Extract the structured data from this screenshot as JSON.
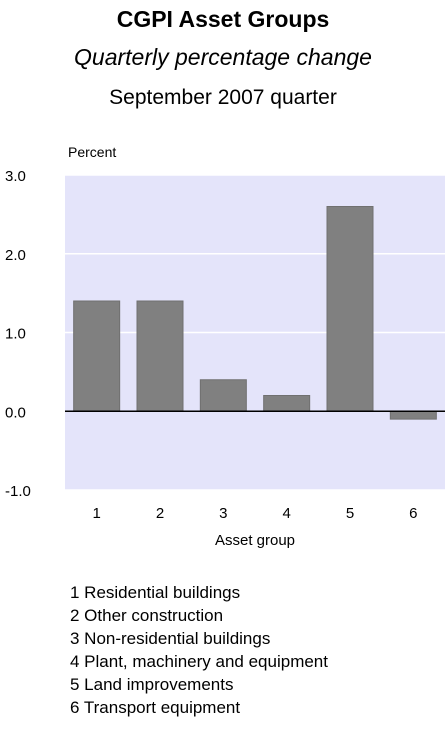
{
  "header": {
    "title": "CGPI Asset Groups",
    "subtitle": "Quarterly percentage change",
    "period": "September 2007 quarter"
  },
  "legend": {
    "items": [
      "1 Residential buildings",
      "2 Other construction",
      "3 Non-residential buildings",
      "4 Plant, machinery and equipment",
      "5 Land improvements",
      "6 Transport equipment"
    ]
  },
  "colors": {
    "plot_background": "#e4e4fa",
    "bar": "#808080",
    "gridline": "#ffffff",
    "zero_line": "#000000"
  },
  "chart_data": {
    "type": "bar",
    "title": "CGPI Asset Groups",
    "subtitle": "Quarterly percentage change",
    "xlabel": "Asset group",
    "ylabel": "Percent",
    "categories": [
      "1",
      "2",
      "3",
      "4",
      "5",
      "6"
    ],
    "values": [
      1.4,
      1.4,
      0.4,
      0.2,
      2.6,
      -0.1
    ],
    "ylim": [
      -1.0,
      3.0
    ],
    "yticks": [
      "3.0",
      "2.0",
      "1.0",
      "0.0",
      "-1.0"
    ],
    "ytick_values": [
      3.0,
      2.0,
      1.0,
      0.0,
      -1.0
    ],
    "grid": true
  }
}
